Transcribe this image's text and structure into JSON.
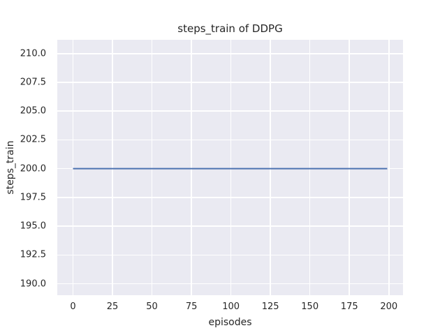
{
  "style": {
    "fig_bg": "#ffffff",
    "plot_bg": "#eaeaf2",
    "grid_color": "#ffffff",
    "text_color": "#262626",
    "line_color": "#4c72b0"
  },
  "chart_data": {
    "type": "line",
    "title": "steps_train of DDPG",
    "xlabel": "episodes",
    "ylabel": "steps_train",
    "x_ticks": [
      "0",
      "25",
      "50",
      "75",
      "100",
      "125",
      "150",
      "175",
      "200"
    ],
    "y_ticks": [
      "190.0",
      "192.5",
      "195.0",
      "197.5",
      "200.0",
      "202.5",
      "205.0",
      "207.5",
      "210.0"
    ],
    "xlim": [
      -9.95,
      208.95
    ],
    "ylim": [
      189.0,
      211.2
    ],
    "grid": true,
    "legend": "none",
    "series": [
      {
        "name": "steps_train",
        "color": "#4c72b0",
        "x": [
          0,
          199
        ],
        "y": [
          200,
          200
        ]
      }
    ]
  }
}
